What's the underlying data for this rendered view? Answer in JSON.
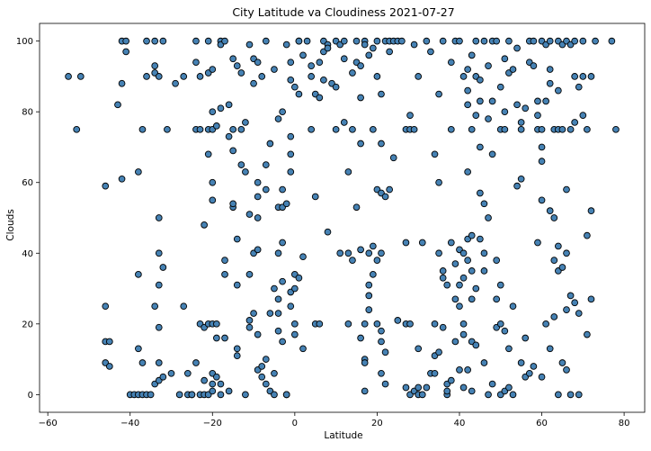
{
  "chart_data": {
    "type": "scatter",
    "title": "City Latitude va Cloudiness 2021-07-27",
    "xlabel": "Latitude",
    "ylabel": "Clouds",
    "xlim": [
      -62,
      85
    ],
    "ylim": [
      -5,
      105
    ],
    "xticks": [
      -60,
      -40,
      -20,
      0,
      20,
      40,
      60,
      80
    ],
    "yticks": [
      0,
      20,
      40,
      60,
      80,
      100
    ],
    "grid": false,
    "legend": "none",
    "marker_color": "#4682b4",
    "marker_edge": "#000000",
    "points": [
      [
        -55,
        90
      ],
      [
        -53,
        75
      ],
      [
        -52,
        90
      ],
      [
        -46,
        25
      ],
      [
        -46,
        59
      ],
      [
        -46,
        15
      ],
      [
        -46,
        9
      ],
      [
        -45,
        15
      ],
      [
        -45,
        8
      ],
      [
        -43,
        82
      ],
      [
        -42,
        88
      ],
      [
        -42,
        61
      ],
      [
        -42,
        100
      ],
      [
        -41,
        100
      ],
      [
        -41,
        97
      ],
      [
        -40,
        0
      ],
      [
        -39,
        0
      ],
      [
        -38,
        0
      ],
      [
        -38,
        13
      ],
      [
        -38,
        34
      ],
      [
        -38,
        63
      ],
      [
        -37,
        75
      ],
      [
        -37,
        9
      ],
      [
        -37,
        0
      ],
      [
        -36,
        0
      ],
      [
        -36,
        90
      ],
      [
        -36,
        100
      ],
      [
        -35,
        0
      ],
      [
        -34,
        91
      ],
      [
        -34,
        93
      ],
      [
        -34,
        100
      ],
      [
        -34,
        25
      ],
      [
        -34,
        3
      ],
      [
        -33,
        4
      ],
      [
        -33,
        9
      ],
      [
        -33,
        19
      ],
      [
        -33,
        31
      ],
      [
        -33,
        40
      ],
      [
        -33,
        50
      ],
      [
        -33,
        90
      ],
      [
        -32,
        36
      ],
      [
        -32,
        100
      ],
      [
        -32,
        5
      ],
      [
        -31,
        75
      ],
      [
        -30,
        6
      ],
      [
        -29,
        88
      ],
      [
        -28,
        0
      ],
      [
        -27,
        90
      ],
      [
        -27,
        25
      ],
      [
        -26,
        0
      ],
      [
        -26,
        6
      ],
      [
        -25,
        0
      ],
      [
        -25,
        0
      ],
      [
        -24,
        9
      ],
      [
        -24,
        94
      ],
      [
        -24,
        75
      ],
      [
        -24,
        100
      ],
      [
        -23,
        0
      ],
      [
        -23,
        20
      ],
      [
        -23,
        90
      ],
      [
        -23,
        75
      ],
      [
        -22,
        4
      ],
      [
        -22,
        0
      ],
      [
        -22,
        19
      ],
      [
        -22,
        48
      ],
      [
        -21,
        0
      ],
      [
        -21,
        20
      ],
      [
        -21,
        100
      ],
      [
        -21,
        68
      ],
      [
        -21,
        91
      ],
      [
        -21,
        75
      ],
      [
        -20,
        20
      ],
      [
        -20,
        1
      ],
      [
        -20,
        3
      ],
      [
        -20,
        6
      ],
      [
        -20,
        75
      ],
      [
        -20,
        80
      ],
      [
        -20,
        55
      ],
      [
        -20,
        60
      ],
      [
        -20,
        92
      ],
      [
        -19,
        20
      ],
      [
        -19,
        16
      ],
      [
        -19,
        5
      ],
      [
        -19,
        76
      ],
      [
        -18,
        100
      ],
      [
        -18,
        0
      ],
      [
        -18,
        3
      ],
      [
        -18,
        81
      ],
      [
        -18,
        99
      ],
      [
        -17,
        16
      ],
      [
        -17,
        34
      ],
      [
        -17,
        38
      ],
      [
        -17,
        100
      ],
      [
        -16,
        82
      ],
      [
        -16,
        1
      ],
      [
        -16,
        73
      ],
      [
        -15,
        53
      ],
      [
        -15,
        69
      ],
      [
        -15,
        54
      ],
      [
        -15,
        95
      ],
      [
        -15,
        75
      ],
      [
        -14,
        44
      ],
      [
        -14,
        31
      ],
      [
        -14,
        13
      ],
      [
        -14,
        93
      ],
      [
        -14,
        11
      ],
      [
        -13,
        65
      ],
      [
        -13,
        75
      ],
      [
        -13,
        91
      ],
      [
        -12,
        77
      ],
      [
        -12,
        63
      ],
      [
        -12,
        0
      ],
      [
        -11,
        34
      ],
      [
        -11,
        19
      ],
      [
        -11,
        99
      ],
      [
        -11,
        51
      ],
      [
        -11,
        21
      ],
      [
        -10,
        95
      ],
      [
        -10,
        40
      ],
      [
        -10,
        23
      ],
      [
        -10,
        88
      ],
      [
        -9,
        60
      ],
      [
        -9,
        56
      ],
      [
        -9,
        41
      ],
      [
        -9,
        50
      ],
      [
        -9,
        17
      ],
      [
        -9,
        7
      ],
      [
        -9,
        94
      ],
      [
        -8,
        5
      ],
      [
        -8,
        90
      ],
      [
        -8,
        8
      ],
      [
        -7,
        3
      ],
      [
        -7,
        10
      ],
      [
        -7,
        58
      ],
      [
        -7,
        65
      ],
      [
        -7,
        100
      ],
      [
        -6,
        71
      ],
      [
        -6,
        23
      ],
      [
        -6,
        1
      ],
      [
        -5,
        6
      ],
      [
        -5,
        30
      ],
      [
        -5,
        92
      ],
      [
        -5,
        0
      ],
      [
        -4,
        53
      ],
      [
        -4,
        23
      ],
      [
        -4,
        40
      ],
      [
        -4,
        78
      ],
      [
        -4,
        18
      ],
      [
        -4,
        27
      ],
      [
        -3,
        43
      ],
      [
        -3,
        53
      ],
      [
        -3,
        80
      ],
      [
        -3,
        58
      ],
      [
        -3,
        32
      ],
      [
        -3,
        15
      ],
      [
        -2,
        99
      ],
      [
        -2,
        0
      ],
      [
        -2,
        0
      ],
      [
        -2,
        54
      ],
      [
        -1,
        25
      ],
      [
        -1,
        29
      ],
      [
        -1,
        63
      ],
      [
        -1,
        73
      ],
      [
        -1,
        68
      ],
      [
        -1,
        89
      ],
      [
        -1,
        94
      ],
      [
        0,
        34
      ],
      [
        0,
        20
      ],
      [
        0,
        87
      ],
      [
        0,
        30
      ],
      [
        0,
        17
      ],
      [
        1,
        100
      ],
      [
        1,
        85
      ],
      [
        1,
        33
      ],
      [
        1,
        100
      ],
      [
        2,
        13
      ],
      [
        2,
        96
      ],
      [
        2,
        39
      ],
      [
        3,
        100
      ],
      [
        4,
        90
      ],
      [
        4,
        75
      ],
      [
        4,
        93
      ],
      [
        5,
        20
      ],
      [
        5,
        56
      ],
      [
        5,
        85
      ],
      [
        6,
        20
      ],
      [
        6,
        84
      ],
      [
        6,
        94
      ],
      [
        7,
        97
      ],
      [
        7,
        89
      ],
      [
        7,
        100
      ],
      [
        8,
        46
      ],
      [
        8,
        99
      ],
      [
        8,
        98
      ],
      [
        9,
        88
      ],
      [
        10,
        87
      ],
      [
        10,
        100
      ],
      [
        10,
        75
      ],
      [
        11,
        99
      ],
      [
        11,
        40
      ],
      [
        12,
        95
      ],
      [
        12,
        77
      ],
      [
        12,
        100
      ],
      [
        13,
        20
      ],
      [
        13,
        63
      ],
      [
        13,
        40
      ],
      [
        14,
        38
      ],
      [
        14,
        91
      ],
      [
        14,
        75
      ],
      [
        15,
        53
      ],
      [
        15,
        100
      ],
      [
        15,
        94
      ],
      [
        16,
        41
      ],
      [
        16,
        93
      ],
      [
        16,
        71
      ],
      [
        16,
        16
      ],
      [
        16,
        84
      ],
      [
        17,
        10
      ],
      [
        17,
        1
      ],
      [
        17,
        9
      ],
      [
        17,
        100
      ],
      [
        17,
        99
      ],
      [
        17,
        20
      ],
      [
        18,
        40
      ],
      [
        18,
        96
      ],
      [
        18,
        28
      ],
      [
        18,
        31
      ],
      [
        18,
        24
      ],
      [
        19,
        42
      ],
      [
        19,
        75
      ],
      [
        19,
        34
      ],
      [
        19,
        98
      ],
      [
        20,
        58
      ],
      [
        20,
        100
      ],
      [
        20,
        90
      ],
      [
        20,
        38
      ],
      [
        20,
        20
      ],
      [
        21,
        18
      ],
      [
        21,
        6
      ],
      [
        21,
        57
      ],
      [
        21,
        15
      ],
      [
        21,
        85
      ],
      [
        21,
        71
      ],
      [
        21,
        40
      ],
      [
        22,
        12
      ],
      [
        22,
        56
      ],
      [
        22,
        3
      ],
      [
        22,
        100
      ],
      [
        23,
        97
      ],
      [
        23,
        58
      ],
      [
        23,
        100
      ],
      [
        24,
        67
      ],
      [
        24,
        100
      ],
      [
        25,
        21
      ],
      [
        25,
        100
      ],
      [
        26,
        100
      ],
      [
        27,
        43
      ],
      [
        27,
        20
      ],
      [
        27,
        2
      ],
      [
        27,
        75
      ],
      [
        28,
        0
      ],
      [
        28,
        20
      ],
      [
        28,
        75
      ],
      [
        28,
        79
      ],
      [
        29,
        1
      ],
      [
        29,
        75
      ],
      [
        29,
        99
      ],
      [
        30,
        0
      ],
      [
        30,
        90
      ],
      [
        30,
        2
      ],
      [
        30,
        13
      ],
      [
        31,
        43
      ],
      [
        31,
        0
      ],
      [
        32,
        100
      ],
      [
        32,
        2
      ],
      [
        33,
        6
      ],
      [
        33,
        97
      ],
      [
        34,
        11
      ],
      [
        34,
        20
      ],
      [
        34,
        68
      ],
      [
        34,
        6
      ],
      [
        35,
        60
      ],
      [
        35,
        85
      ],
      [
        35,
        40
      ],
      [
        35,
        12
      ],
      [
        36,
        100
      ],
      [
        36,
        19
      ],
      [
        36,
        33
      ],
      [
        36,
        35
      ],
      [
        37,
        0
      ],
      [
        37,
        1
      ],
      [
        37,
        3
      ],
      [
        37,
        31
      ],
      [
        38,
        43
      ],
      [
        38,
        94
      ],
      [
        38,
        75
      ],
      [
        38,
        4
      ],
      [
        39,
        100
      ],
      [
        39,
        27
      ],
      [
        39,
        37
      ],
      [
        39,
        15
      ],
      [
        40,
        41
      ],
      [
        40,
        31
      ],
      [
        40,
        100
      ],
      [
        40,
        7
      ],
      [
        40,
        25
      ],
      [
        41,
        20
      ],
      [
        41,
        17
      ],
      [
        41,
        40
      ],
      [
        41,
        33
      ],
      [
        41,
        2
      ],
      [
        41,
        90
      ],
      [
        42,
        82
      ],
      [
        42,
        63
      ],
      [
        42,
        38
      ],
      [
        42,
        44
      ],
      [
        42,
        86
      ],
      [
        42,
        92
      ],
      [
        42,
        7
      ],
      [
        43,
        27
      ],
      [
        43,
        75
      ],
      [
        43,
        96
      ],
      [
        43,
        35
      ],
      [
        43,
        45
      ],
      [
        43,
        15
      ],
      [
        43,
        1
      ],
      [
        44,
        79
      ],
      [
        44,
        90
      ],
      [
        44,
        100
      ],
      [
        44,
        14
      ],
      [
        44,
        30
      ],
      [
        45,
        70
      ],
      [
        45,
        83
      ],
      [
        45,
        44
      ],
      [
        45,
        89
      ],
      [
        45,
        57
      ],
      [
        46,
        40
      ],
      [
        46,
        54
      ],
      [
        46,
        35
      ],
      [
        46,
        9
      ],
      [
        46,
        100
      ],
      [
        47,
        78
      ],
      [
        47,
        50
      ],
      [
        47,
        0
      ],
      [
        47,
        93
      ],
      [
        48,
        68
      ],
      [
        48,
        83
      ],
      [
        48,
        100
      ],
      [
        48,
        3
      ],
      [
        49,
        19
      ],
      [
        49,
        27
      ],
      [
        49,
        38
      ],
      [
        49,
        100
      ],
      [
        50,
        0
      ],
      [
        50,
        87
      ],
      [
        50,
        75
      ],
      [
        50,
        31
      ],
      [
        50,
        20
      ],
      [
        51,
        75
      ],
      [
        51,
        80
      ],
      [
        51,
        95
      ],
      [
        51,
        1
      ],
      [
        51,
        18
      ],
      [
        52,
        100
      ],
      [
        52,
        91
      ],
      [
        52,
        2
      ],
      [
        52,
        13
      ],
      [
        53,
        92
      ],
      [
        53,
        0
      ],
      [
        53,
        25
      ],
      [
        54,
        59
      ],
      [
        54,
        82
      ],
      [
        54,
        98
      ],
      [
        55,
        77
      ],
      [
        55,
        75
      ],
      [
        55,
        61
      ],
      [
        55,
        9
      ],
      [
        56,
        5
      ],
      [
        56,
        16
      ],
      [
        56,
        81
      ],
      [
        57,
        100
      ],
      [
        57,
        94
      ],
      [
        57,
        6
      ],
      [
        58,
        93
      ],
      [
        58,
        100
      ],
      [
        58,
        8
      ],
      [
        59,
        43
      ],
      [
        59,
        83
      ],
      [
        59,
        75
      ],
      [
        59,
        79
      ],
      [
        60,
        100
      ],
      [
        60,
        55
      ],
      [
        60,
        66
      ],
      [
        60,
        70
      ],
      [
        60,
        75
      ],
      [
        60,
        5
      ],
      [
        61,
        20
      ],
      [
        61,
        99
      ],
      [
        61,
        83
      ],
      [
        62,
        92
      ],
      [
        62,
        52
      ],
      [
        62,
        100
      ],
      [
        62,
        88
      ],
      [
        62,
        13
      ],
      [
        63,
        50
      ],
      [
        63,
        22
      ],
      [
        63,
        75
      ],
      [
        63,
        38
      ],
      [
        64,
        35
      ],
      [
        64,
        0
      ],
      [
        64,
        100
      ],
      [
        64,
        86
      ],
      [
        64,
        75
      ],
      [
        64,
        42
      ],
      [
        65,
        36
      ],
      [
        65,
        99
      ],
      [
        65,
        75
      ],
      [
        65,
        9
      ],
      [
        66,
        40
      ],
      [
        66,
        58
      ],
      [
        66,
        7
      ],
      [
        66,
        100
      ],
      [
        66,
        24
      ],
      [
        67,
        28
      ],
      [
        67,
        99
      ],
      [
        67,
        75
      ],
      [
        67,
        0
      ],
      [
        68,
        90
      ],
      [
        68,
        77
      ],
      [
        68,
        100
      ],
      [
        68,
        26
      ],
      [
        69,
        23
      ],
      [
        69,
        87
      ],
      [
        69,
        0
      ],
      [
        70,
        79
      ],
      [
        70,
        90
      ],
      [
        70,
        100
      ],
      [
        71,
        45
      ],
      [
        71,
        17
      ],
      [
        71,
        75
      ],
      [
        72,
        52
      ],
      [
        72,
        27
      ],
      [
        72,
        90
      ],
      [
        73,
        100
      ],
      [
        77,
        100
      ],
      [
        78,
        75
      ]
    ]
  }
}
